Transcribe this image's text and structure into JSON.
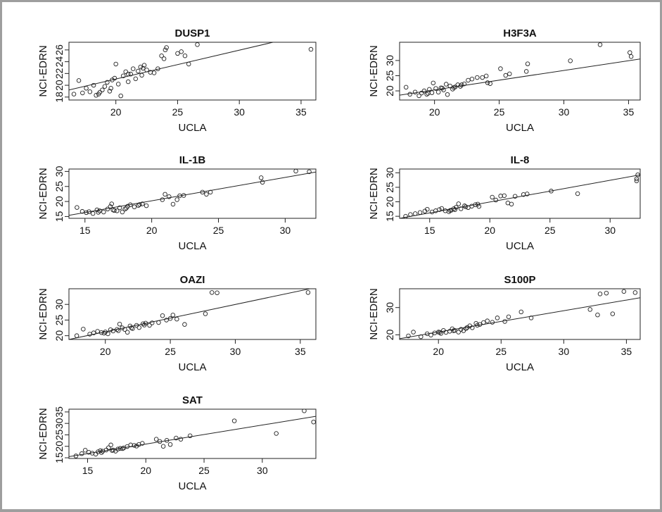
{
  "chart_data": [
    {
      "type": "scatter",
      "title": "DUSP1",
      "xlabel": "UCLA",
      "ylabel": "NCI-EDRN",
      "xlim": [
        16.2,
        36.2
      ],
      "ylim": [
        17.5,
        27.3
      ],
      "xticks": [
        20,
        25,
        30,
        35
      ],
      "yticks": [
        18,
        20,
        22,
        24,
        26
      ],
      "fit_line": [
        [
          16.2,
          19.2
        ],
        [
          36.2,
          29.0
        ]
      ],
      "points": [
        [
          16.6,
          18.5
        ],
        [
          17.0,
          20.8
        ],
        [
          17.3,
          18.7
        ],
        [
          17.6,
          19.5
        ],
        [
          17.9,
          18.9
        ],
        [
          18.2,
          20.0
        ],
        [
          18.4,
          18.3
        ],
        [
          18.7,
          18.8
        ],
        [
          18.9,
          19.2
        ],
        [
          19.1,
          19.8
        ],
        [
          19.3,
          20.5
        ],
        [
          19.5,
          19.0
        ],
        [
          19.7,
          20.9
        ],
        [
          19.9,
          21.2
        ],
        [
          20.0,
          23.6
        ],
        [
          20.2,
          20.2
        ],
        [
          20.4,
          18.2
        ],
        [
          20.6,
          21.6
        ],
        [
          20.8,
          22.3
        ],
        [
          21.0,
          20.6
        ],
        [
          21.2,
          21.9
        ],
        [
          21.4,
          22.8
        ],
        [
          21.6,
          21.1
        ],
        [
          21.8,
          22.4
        ],
        [
          22.0,
          23.1
        ],
        [
          22.1,
          21.7
        ],
        [
          22.3,
          23.4
        ],
        [
          22.5,
          22.6
        ],
        [
          22.8,
          22.2
        ],
        [
          23.1,
          22.1
        ],
        [
          23.4,
          22.8
        ],
        [
          23.7,
          25.0
        ],
        [
          23.9,
          24.5
        ],
        [
          24.0,
          26.0
        ],
        [
          24.1,
          26.4
        ],
        [
          25.0,
          25.4
        ],
        [
          25.3,
          25.7
        ],
        [
          25.6,
          25.0
        ],
        [
          25.9,
          23.6
        ],
        [
          26.6,
          26.9
        ],
        [
          35.8,
          26.1
        ],
        [
          18.6,
          18.5
        ],
        [
          19.6,
          19.5
        ],
        [
          21.0,
          21.9
        ],
        [
          22.2,
          22.9
        ]
      ]
    },
    {
      "type": "scatter",
      "title": "H3F3A",
      "xlabel": "UCLA",
      "ylabel": "NCI-EDRN",
      "xlim": [
        17.3,
        35.9
      ],
      "ylim": [
        17.0,
        36.0
      ],
      "xticks": [
        20,
        25,
        30,
        35
      ],
      "yticks": [
        20,
        25,
        30
      ],
      "fit_line": [
        [
          17.3,
          18.6
        ],
        [
          35.9,
          30.5
        ]
      ],
      "points": [
        [
          17.8,
          21.2
        ],
        [
          18.1,
          18.9
        ],
        [
          18.5,
          19.6
        ],
        [
          18.8,
          18.4
        ],
        [
          19.0,
          19.3
        ],
        [
          19.2,
          20.0
        ],
        [
          19.4,
          18.9
        ],
        [
          19.6,
          20.5
        ],
        [
          19.8,
          19.4
        ],
        [
          19.9,
          22.6
        ],
        [
          20.1,
          20.8
        ],
        [
          20.3,
          19.6
        ],
        [
          20.5,
          21.0
        ],
        [
          20.7,
          20.3
        ],
        [
          20.9,
          22.2
        ],
        [
          21.0,
          18.8
        ],
        [
          21.2,
          21.6
        ],
        [
          21.4,
          20.6
        ],
        [
          21.6,
          21.3
        ],
        [
          21.8,
          22.0
        ],
        [
          22.0,
          21.5
        ],
        [
          22.3,
          22.3
        ],
        [
          22.6,
          23.5
        ],
        [
          22.9,
          23.9
        ],
        [
          23.3,
          24.4
        ],
        [
          23.7,
          24.4
        ],
        [
          24.0,
          24.9
        ],
        [
          24.1,
          22.7
        ],
        [
          24.3,
          22.4
        ],
        [
          25.1,
          27.3
        ],
        [
          25.5,
          25.1
        ],
        [
          25.8,
          25.6
        ],
        [
          27.1,
          26.4
        ],
        [
          27.2,
          28.9
        ],
        [
          30.5,
          29.9
        ],
        [
          32.8,
          35.2
        ],
        [
          35.1,
          32.6
        ],
        [
          35.2,
          31.3
        ],
        [
          19.5,
          19.2
        ],
        [
          20.6,
          20.9
        ],
        [
          21.5,
          21.1
        ],
        [
          22.1,
          22.0
        ]
      ]
    },
    {
      "type": "scatter",
      "title": "IL-1B",
      "xlabel": "UCLA",
      "ylabel": "NCI-EDRN",
      "xlim": [
        13.8,
        32.3
      ],
      "ylim": [
        14.4,
        30.8
      ],
      "xticks": [
        15,
        20,
        25,
        30
      ],
      "yticks": [
        15,
        20,
        25,
        30
      ],
      "fit_line": [
        [
          13.8,
          15.4
        ],
        [
          32.3,
          29.8
        ]
      ],
      "points": [
        [
          14.4,
          18.0
        ],
        [
          14.8,
          16.7
        ],
        [
          15.1,
          16.3
        ],
        [
          15.3,
          16.6
        ],
        [
          15.6,
          16.0
        ],
        [
          15.9,
          17.2
        ],
        [
          16.1,
          16.9
        ],
        [
          16.4,
          16.5
        ],
        [
          16.7,
          17.5
        ],
        [
          16.9,
          18.3
        ],
        [
          17.0,
          19.2
        ],
        [
          17.2,
          17.0
        ],
        [
          17.4,
          16.9
        ],
        [
          17.6,
          17.9
        ],
        [
          17.8,
          16.5
        ],
        [
          18.0,
          17.5
        ],
        [
          18.2,
          18.4
        ],
        [
          18.4,
          18.9
        ],
        [
          18.7,
          18.2
        ],
        [
          19.0,
          18.7
        ],
        [
          19.3,
          19.2
        ],
        [
          19.6,
          18.6
        ],
        [
          20.8,
          20.6
        ],
        [
          21.0,
          22.4
        ],
        [
          21.3,
          21.6
        ],
        [
          21.6,
          19.1
        ],
        [
          21.9,
          20.6
        ],
        [
          22.1,
          21.9
        ],
        [
          22.4,
          22.0
        ],
        [
          23.8,
          23.1
        ],
        [
          24.1,
          22.4
        ],
        [
          24.4,
          23.1
        ],
        [
          28.2,
          27.9
        ],
        [
          28.3,
          26.4
        ],
        [
          30.8,
          30.1
        ],
        [
          31.8,
          29.9
        ],
        [
          16.0,
          16.4
        ],
        [
          17.1,
          17.2
        ],
        [
          18.1,
          17.8
        ],
        [
          19.1,
          19.0
        ]
      ]
    },
    {
      "type": "scatter",
      "title": "IL-8",
      "xlabel": "UCLA",
      "ylabel": "NCI-EDRN",
      "xlim": [
        12.5,
        32.5
      ],
      "ylim": [
        14.3,
        31.3
      ],
      "xticks": [
        15,
        20,
        25,
        30
      ],
      "yticks": [
        15,
        20,
        25,
        30
      ],
      "fit_line": [
        [
          12.5,
          14.3
        ],
        [
          32.5,
          29.3
        ]
      ],
      "points": [
        [
          13.0,
          15.0
        ],
        [
          13.4,
          15.6
        ],
        [
          13.8,
          15.9
        ],
        [
          14.2,
          16.3
        ],
        [
          14.6,
          16.8
        ],
        [
          14.8,
          17.4
        ],
        [
          15.2,
          16.5
        ],
        [
          15.5,
          16.9
        ],
        [
          15.8,
          17.3
        ],
        [
          16.0,
          17.7
        ],
        [
          16.3,
          16.9
        ],
        [
          16.6,
          16.6
        ],
        [
          16.8,
          17.1
        ],
        [
          17.0,
          17.6
        ],
        [
          17.2,
          18.1
        ],
        [
          17.4,
          19.3
        ],
        [
          17.6,
          17.6
        ],
        [
          17.9,
          18.6
        ],
        [
          18.2,
          18.0
        ],
        [
          18.5,
          18.5
        ],
        [
          18.8,
          19.0
        ],
        [
          19.1,
          18.4
        ],
        [
          20.2,
          21.6
        ],
        [
          20.5,
          20.6
        ],
        [
          20.9,
          22.0
        ],
        [
          21.2,
          22.1
        ],
        [
          21.5,
          19.6
        ],
        [
          21.8,
          19.2
        ],
        [
          22.1,
          21.9
        ],
        [
          22.8,
          22.5
        ],
        [
          23.1,
          22.7
        ],
        [
          25.1,
          23.7
        ],
        [
          27.3,
          22.8
        ],
        [
          32.3,
          29.3
        ],
        [
          32.2,
          27.9
        ],
        [
          32.2,
          27.2
        ],
        [
          16.7,
          17.0
        ],
        [
          17.1,
          17.3
        ],
        [
          18.0,
          18.3
        ],
        [
          19.0,
          19.2
        ]
      ]
    },
    {
      "type": "scatter",
      "title": "OAZI",
      "xlabel": "UCLA",
      "ylabel": "NCI-EDRN",
      "xlim": [
        17.2,
        36.2
      ],
      "ylim": [
        18.8,
        35.0
      ],
      "xticks": [
        20,
        25,
        30,
        35
      ],
      "yticks": [
        20,
        25,
        30
      ],
      "fit_line": [
        [
          17.2,
          18.8
        ],
        [
          36.2,
          35.4
        ]
      ],
      "points": [
        [
          17.8,
          20.0
        ],
        [
          18.3,
          22.1
        ],
        [
          18.8,
          20.5
        ],
        [
          19.1,
          20.9
        ],
        [
          19.4,
          21.4
        ],
        [
          19.7,
          21.0
        ],
        [
          20.0,
          21.2
        ],
        [
          20.2,
          20.6
        ],
        [
          20.4,
          21.9
        ],
        [
          20.6,
          21.5
        ],
        [
          20.9,
          22.0
        ],
        [
          21.1,
          23.7
        ],
        [
          21.3,
          22.5
        ],
        [
          21.5,
          22.0
        ],
        [
          21.7,
          21.1
        ],
        [
          21.9,
          23.1
        ],
        [
          22.1,
          22.3
        ],
        [
          22.4,
          23.3
        ],
        [
          22.6,
          22.6
        ],
        [
          22.9,
          23.8
        ],
        [
          23.1,
          24.0
        ],
        [
          23.4,
          23.3
        ],
        [
          23.6,
          24.1
        ],
        [
          24.1,
          24.2
        ],
        [
          24.4,
          26.4
        ],
        [
          24.7,
          25.0
        ],
        [
          25.0,
          25.5
        ],
        [
          25.2,
          26.6
        ],
        [
          25.5,
          25.3
        ],
        [
          26.1,
          23.6
        ],
        [
          27.7,
          27.0
        ],
        [
          28.2,
          33.8
        ],
        [
          28.6,
          33.7
        ],
        [
          35.6,
          33.8
        ],
        [
          19.9,
          20.8
        ],
        [
          21.0,
          21.6
        ],
        [
          22.0,
          22.5
        ],
        [
          23.0,
          23.4
        ]
      ]
    },
    {
      "type": "scatter",
      "title": "S100P",
      "xlabel": "UCLA",
      "ylabel": "NCI-EDRN",
      "xlim": [
        16.9,
        36.1
      ],
      "ylim": [
        18.3,
        36.9
      ],
      "xticks": [
        20,
        25,
        30,
        35
      ],
      "yticks": [
        20,
        30
      ],
      "fit_line": [
        [
          16.9,
          18.6
        ],
        [
          36.1,
          33.6
        ]
      ],
      "points": [
        [
          17.6,
          19.6
        ],
        [
          18.0,
          21.0
        ],
        [
          18.6,
          19.3
        ],
        [
          19.1,
          20.4
        ],
        [
          19.4,
          19.9
        ],
        [
          19.7,
          20.7
        ],
        [
          20.0,
          21.0
        ],
        [
          20.2,
          20.5
        ],
        [
          20.4,
          21.6
        ],
        [
          20.6,
          20.9
        ],
        [
          20.9,
          21.3
        ],
        [
          21.1,
          22.2
        ],
        [
          21.3,
          21.6
        ],
        [
          21.6,
          21.0
        ],
        [
          21.8,
          22.0
        ],
        [
          22.0,
          21.5
        ],
        [
          22.3,
          22.7
        ],
        [
          22.5,
          23.3
        ],
        [
          22.7,
          22.6
        ],
        [
          23.0,
          24.2
        ],
        [
          23.3,
          23.8
        ],
        [
          23.6,
          24.5
        ],
        [
          23.9,
          25.1
        ],
        [
          24.3,
          24.6
        ],
        [
          24.7,
          26.2
        ],
        [
          25.3,
          24.9
        ],
        [
          25.6,
          26.6
        ],
        [
          26.6,
          28.4
        ],
        [
          27.4,
          26.2
        ],
        [
          32.1,
          29.3
        ],
        [
          32.7,
          27.3
        ],
        [
          32.9,
          35.0
        ],
        [
          33.4,
          35.3
        ],
        [
          33.9,
          27.7
        ],
        [
          34.8,
          35.9
        ],
        [
          35.7,
          35.5
        ],
        [
          20.1,
          20.9
        ],
        [
          21.2,
          21.5
        ],
        [
          22.2,
          22.3
        ],
        [
          23.1,
          23.5
        ]
      ]
    },
    {
      "type": "scatter",
      "title": "SAT",
      "xlabel": "UCLA",
      "ylabel": "NCI-EDRN",
      "xlim": [
        13.4,
        34.6
      ],
      "ylim": [
        14.7,
        36.2
      ],
      "xticks": [
        15,
        20,
        25,
        30
      ],
      "yticks": [
        15,
        20,
        25,
        30,
        35
      ],
      "fit_line": [
        [
          13.4,
          15.5
        ],
        [
          34.6,
          33.1
        ]
      ],
      "points": [
        [
          14.0,
          15.8
        ],
        [
          14.5,
          16.8
        ],
        [
          14.8,
          18.3
        ],
        [
          15.1,
          17.4
        ],
        [
          15.4,
          17.0
        ],
        [
          15.7,
          16.6
        ],
        [
          15.9,
          17.6
        ],
        [
          16.1,
          18.1
        ],
        [
          16.3,
          17.9
        ],
        [
          16.6,
          18.4
        ],
        [
          16.8,
          19.4
        ],
        [
          17.0,
          20.6
        ],
        [
          17.2,
          18.4
        ],
        [
          17.4,
          17.9
        ],
        [
          17.6,
          18.8
        ],
        [
          17.8,
          19.1
        ],
        [
          18.1,
          19.3
        ],
        [
          18.4,
          19.9
        ],
        [
          18.7,
          20.6
        ],
        [
          19.0,
          20.4
        ],
        [
          19.4,
          20.8
        ],
        [
          19.7,
          21.3
        ],
        [
          20.9,
          23.1
        ],
        [
          21.2,
          22.1
        ],
        [
          21.5,
          20.0
        ],
        [
          21.8,
          22.6
        ],
        [
          22.1,
          20.8
        ],
        [
          22.6,
          23.6
        ],
        [
          23.0,
          23.1
        ],
        [
          23.8,
          24.6
        ],
        [
          27.6,
          31.1
        ],
        [
          31.2,
          25.6
        ],
        [
          33.6,
          35.5
        ],
        [
          34.4,
          30.6
        ],
        [
          16.2,
          17.3
        ],
        [
          17.1,
          18.2
        ],
        [
          18.0,
          19.0
        ],
        [
          19.2,
          20.1
        ]
      ]
    }
  ]
}
